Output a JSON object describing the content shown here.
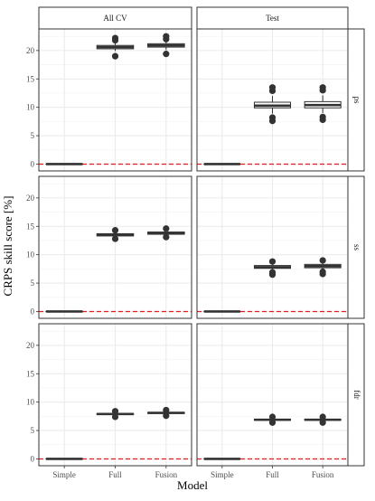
{
  "chart_data": {
    "type": "boxplot",
    "xlabel": "Model",
    "ylabel": "CRPS skill score [%]",
    "columns": [
      "All CV",
      "Test"
    ],
    "rows": [
      "ps",
      "ss",
      "fdr"
    ],
    "categories": [
      "Simple",
      "Full",
      "Fusion"
    ],
    "ylim": [
      -1.2,
      23.8
    ],
    "yticks": [
      0,
      5,
      10,
      15,
      20
    ],
    "reference_line": 0,
    "grid": true,
    "colors": {
      "reference_line": "#e41a1c",
      "box": "#333333",
      "panel_border": "#333333",
      "strip_fill": "#ffffff",
      "grid": "#ebebeb"
    },
    "panels": [
      {
        "column": "All CV",
        "row": "ps",
        "boxes": [
          {
            "category": "Simple",
            "q1": 0,
            "median": 0,
            "q3": 0,
            "whisker_low": 0,
            "whisker_high": 0,
            "outliers": []
          },
          {
            "category": "Full",
            "q1": 20.3,
            "median": 20.6,
            "q3": 20.9,
            "whisker_low": 19.9,
            "whisker_high": 21.4,
            "outliers": [
              19.0,
              22.2,
              21.8
            ]
          },
          {
            "category": "Fusion",
            "q1": 20.6,
            "median": 20.9,
            "q3": 21.2,
            "whisker_low": 20.1,
            "whisker_high": 21.7,
            "outliers": [
              19.4,
              22.5,
              22.0
            ]
          }
        ]
      },
      {
        "column": "Test",
        "row": "ps",
        "boxes": [
          {
            "category": "Simple",
            "q1": 0,
            "median": 0,
            "q3": 0,
            "whisker_low": 0,
            "whisker_high": 0,
            "outliers": []
          },
          {
            "category": "Full",
            "q1": 9.9,
            "median": 10.3,
            "q3": 10.9,
            "whisker_low": 8.9,
            "whisker_high": 12.0,
            "outliers": [
              7.6,
              8.2,
              12.9,
              13.5
            ]
          },
          {
            "category": "Fusion",
            "q1": 9.9,
            "median": 10.4,
            "q3": 11.0,
            "whisker_low": 9.0,
            "whisker_high": 12.1,
            "outliers": [
              7.8,
              8.3,
              13.0,
              13.5
            ]
          }
        ]
      },
      {
        "column": "All CV",
        "row": "ss",
        "boxes": [
          {
            "category": "Simple",
            "q1": 0,
            "median": 0,
            "q3": 0,
            "whisker_low": 0,
            "whisker_high": 0,
            "outliers": []
          },
          {
            "category": "Full",
            "q1": 13.3,
            "median": 13.5,
            "q3": 13.7,
            "whisker_low": 13.0,
            "whisker_high": 14.0,
            "outliers": [
              12.8,
              14.3
            ]
          },
          {
            "category": "Fusion",
            "q1": 13.6,
            "median": 13.8,
            "q3": 14.0,
            "whisker_low": 13.3,
            "whisker_high": 14.3,
            "outliers": [
              13.1,
              14.6
            ]
          }
        ]
      },
      {
        "column": "Test",
        "row": "ss",
        "boxes": [
          {
            "category": "Simple",
            "q1": 0,
            "median": 0,
            "q3": 0,
            "whisker_low": 0,
            "whisker_high": 0,
            "outliers": []
          },
          {
            "category": "Full",
            "q1": 7.6,
            "median": 7.8,
            "q3": 8.1,
            "whisker_low": 7.2,
            "whisker_high": 8.4,
            "outliers": [
              6.5,
              6.9,
              8.8
            ]
          },
          {
            "category": "Fusion",
            "q1": 7.7,
            "median": 8.0,
            "q3": 8.3,
            "whisker_low": 7.3,
            "whisker_high": 8.6,
            "outliers": [
              6.6,
              7.0,
              9.0
            ]
          }
        ]
      },
      {
        "column": "All CV",
        "row": "fdr",
        "boxes": [
          {
            "category": "Simple",
            "q1": 0,
            "median": 0,
            "q3": 0,
            "whisker_low": 0,
            "whisker_high": 0,
            "outliers": []
          },
          {
            "category": "Full",
            "q1": 7.8,
            "median": 7.9,
            "q3": 8.0,
            "whisker_low": 7.6,
            "whisker_high": 8.2,
            "outliers": [
              7.4,
              8.4
            ]
          },
          {
            "category": "Fusion",
            "q1": 8.0,
            "median": 8.1,
            "q3": 8.2,
            "whisker_low": 7.8,
            "whisker_high": 8.4,
            "outliers": [
              7.6,
              8.6
            ]
          }
        ]
      },
      {
        "column": "Test",
        "row": "fdr",
        "boxes": [
          {
            "category": "Simple",
            "q1": 0,
            "median": 0,
            "q3": 0,
            "whisker_low": 0,
            "whisker_high": 0,
            "outliers": []
          },
          {
            "category": "Full",
            "q1": 6.8,
            "median": 6.9,
            "q3": 7.0,
            "whisker_low": 6.6,
            "whisker_high": 7.2,
            "outliers": [
              6.4,
              7.4
            ]
          },
          {
            "category": "Fusion",
            "q1": 6.8,
            "median": 6.9,
            "q3": 7.0,
            "whisker_low": 6.6,
            "whisker_high": 7.2,
            "outliers": [
              6.4,
              7.4
            ]
          }
        ]
      }
    ]
  }
}
